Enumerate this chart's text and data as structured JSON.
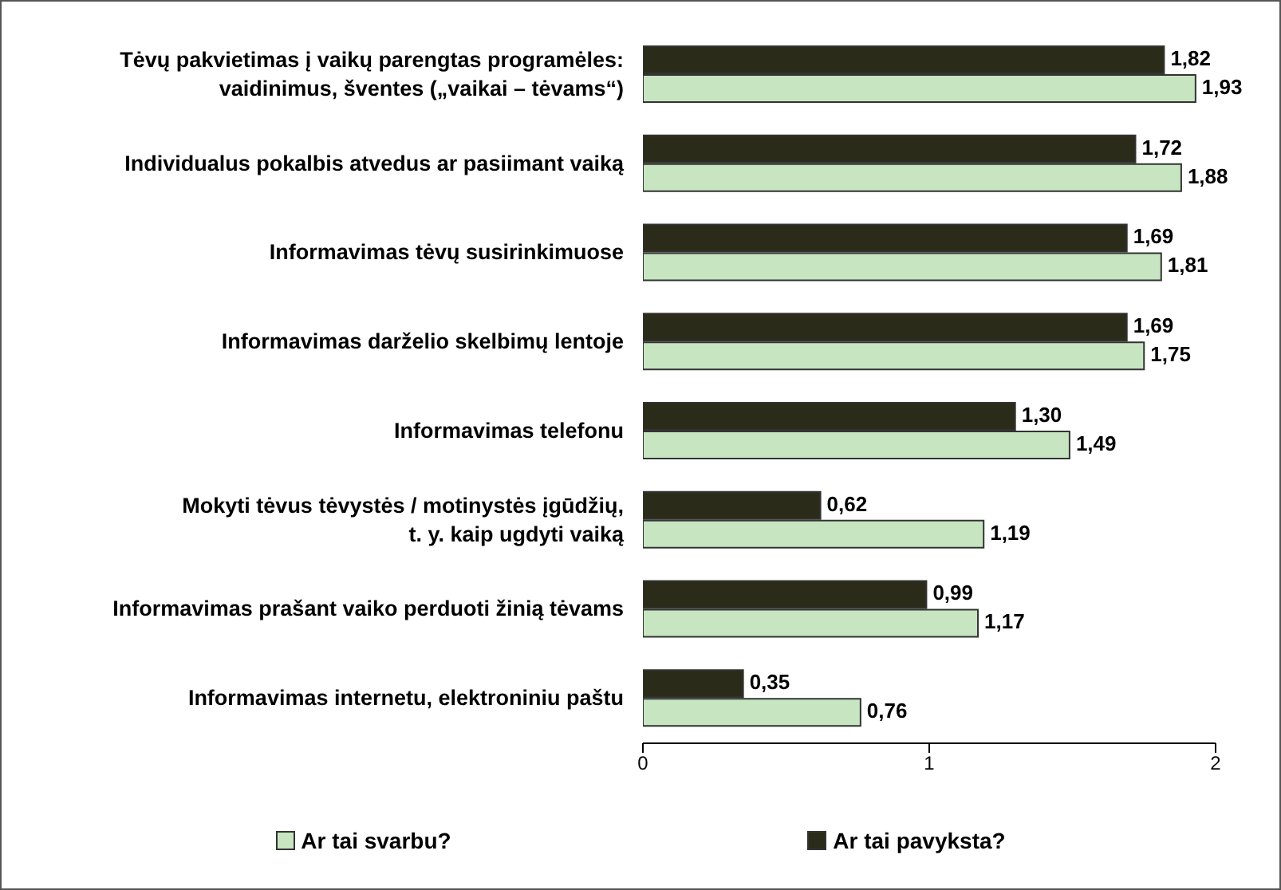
{
  "chart_data": {
    "type": "bar",
    "orientation": "horizontal",
    "categories": [
      "Tėvų pakvietimas į vaikų parengtas programėles:\nvaidinimus, šventes („vaikai – tėvams“)",
      "Individualus pokalbis atvedus ar pasiimant vaiką",
      "Informavimas tėvų susirinkimuose",
      "Informavimas darželio skelbimų lentoje",
      "Informavimas telefonu",
      "Mokyti tėvus tėvystės / motinystės įgūdžių,\nt. y. kaip ugdyti vaiką",
      "Informavimas prašant vaiko perduoti žinią tėvams",
      "Informavimas internetu, elektroniniu paštu"
    ],
    "series": [
      {
        "name": "Ar tai pavyksta?",
        "color": "#2b2b1a",
        "values": [
          1.82,
          1.72,
          1.69,
          1.69,
          1.3,
          0.62,
          0.99,
          0.35
        ],
        "value_labels": [
          "1,82",
          "1,72",
          "1,69",
          "1,69",
          "1,30",
          "0,62",
          "0,99",
          "0,35"
        ]
      },
      {
        "name": "Ar tai svarbu?",
        "color": "#c6e5c0",
        "values": [
          1.93,
          1.88,
          1.81,
          1.75,
          1.49,
          1.19,
          1.17,
          0.76
        ],
        "value_labels": [
          "1,93",
          "1,88",
          "1,81",
          "1,75",
          "1,49",
          "1,19",
          "1,17",
          "0,76"
        ]
      }
    ],
    "xlim": [
      0,
      2
    ],
    "xticks": [
      0,
      1,
      2
    ],
    "legend": "bottom"
  }
}
